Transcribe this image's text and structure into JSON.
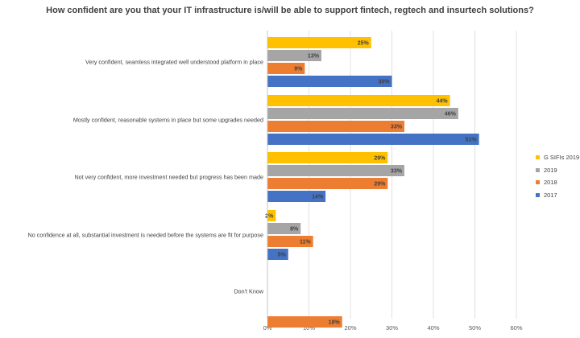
{
  "chart_data": {
    "type": "bar",
    "orientation": "horizontal",
    "title": "How confident are you that your IT infrastructure is/will be able to support fintech, regtech and insurtech solutions?",
    "categories": [
      "Very confident, seamless integrated well understood platform in place",
      "Mostly confident, reasonable systems in place but some upgrades needed",
      "Not very confident, more investment needed but progress has been made",
      "No confidence at all, substantial investment is needed before the systems are fit for purpose",
      "Don't Know"
    ],
    "series": [
      {
        "name": "G SIFIs 2019",
        "color": "#FFC000",
        "values": [
          25,
          44,
          29,
          2,
          null
        ],
        "labels": [
          "25%",
          "44%",
          "29%",
          "2%",
          ""
        ]
      },
      {
        "name": "2019",
        "color": "#A5A5A5",
        "values": [
          13,
          46,
          33,
          8,
          null
        ],
        "labels": [
          "13%",
          "46%",
          "33%",
          "8%",
          ""
        ]
      },
      {
        "name": "2018",
        "color": "#ED7D31",
        "values": [
          9,
          33,
          29,
          11,
          18
        ],
        "labels": [
          "9%",
          "33%",
          "29%",
          "11%",
          "18%"
        ]
      },
      {
        "name": "2017",
        "color": "#4472C4",
        "values": [
          30,
          51,
          14,
          5,
          null
        ],
        "labels": [
          "30%",
          "51%",
          "14%",
          "5%",
          ""
        ]
      }
    ],
    "xlim": [
      0,
      60
    ],
    "x_ticks": [
      "0%",
      "10%",
      "20%",
      "30%",
      "40%",
      "50%",
      "60%"
    ],
    "grid": true,
    "legend_position": "right"
  }
}
